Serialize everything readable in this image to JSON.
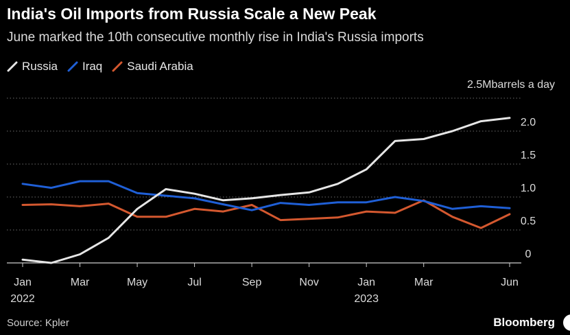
{
  "title": "India's Oil Imports from Russia Scale a New Peak",
  "subtitle": "June marked the 10th consecutive monthly rise in India's Russia imports",
  "unit_label": "2.5Mbarrels a day",
  "source": "Source: Kpler",
  "brand": "Bloomberg",
  "colors": {
    "background": "#000000",
    "grid": "#6e6e6e",
    "russia": "#e6e6e6",
    "iraq": "#1f5fd6",
    "saudi": "#d4582f"
  },
  "chart_data": {
    "type": "line",
    "x": [
      "Jan 2022",
      "Feb 2022",
      "Mar 2022",
      "Apr 2022",
      "May 2022",
      "Jun 2022",
      "Jul 2022",
      "Aug 2022",
      "Sep 2022",
      "Oct 2022",
      "Nov 2022",
      "Dec 2022",
      "Jan 2023",
      "Feb 2023",
      "Mar 2023",
      "Apr 2023",
      "May 2023",
      "Jun 2023"
    ],
    "x_ticks": [
      {
        "index": 0,
        "label": "Jan",
        "sub": "2022"
      },
      {
        "index": 2,
        "label": "Mar",
        "sub": ""
      },
      {
        "index": 4,
        "label": "May",
        "sub": ""
      },
      {
        "index": 6,
        "label": "Jul",
        "sub": ""
      },
      {
        "index": 8,
        "label": "Sep",
        "sub": ""
      },
      {
        "index": 10,
        "label": "Nov",
        "sub": ""
      },
      {
        "index": 12,
        "label": "Jan",
        "sub": "2023"
      },
      {
        "index": 14,
        "label": "Mar",
        "sub": ""
      },
      {
        "index": 17,
        "label": "Jun",
        "sub": ""
      }
    ],
    "y_ticks": [
      {
        "value": 0,
        "label": "0"
      },
      {
        "value": 0.5,
        "label": "0.5"
      },
      {
        "value": 1.0,
        "label": "1.0"
      },
      {
        "value": 1.5,
        "label": "1.5"
      },
      {
        "value": 2.0,
        "label": "2.0"
      },
      {
        "value": 2.5,
        "label": ""
      }
    ],
    "ylim": [
      0,
      2.5
    ],
    "grid": true,
    "legend_position": "top-left",
    "series": [
      {
        "name": "Russia",
        "color": "#e6e6e6",
        "values": [
          0.05,
          0.0,
          0.13,
          0.38,
          0.82,
          1.12,
          1.05,
          0.95,
          0.98,
          1.03,
          1.07,
          1.2,
          1.42,
          1.85,
          1.88,
          2.0,
          2.15,
          2.2
        ]
      },
      {
        "name": "Iraq",
        "color": "#1f5fd6",
        "values": [
          1.2,
          1.14,
          1.24,
          1.24,
          1.06,
          1.02,
          0.98,
          0.89,
          0.8,
          0.91,
          0.88,
          0.92,
          0.92,
          1.0,
          0.94,
          0.82,
          0.86,
          0.83
        ]
      },
      {
        "name": "Saudi Arabia",
        "color": "#d4582f",
        "values": [
          0.88,
          0.89,
          0.86,
          0.9,
          0.7,
          0.7,
          0.82,
          0.78,
          0.88,
          0.65,
          0.67,
          0.69,
          0.78,
          0.76,
          0.95,
          0.7,
          0.53,
          0.74
        ]
      }
    ]
  }
}
